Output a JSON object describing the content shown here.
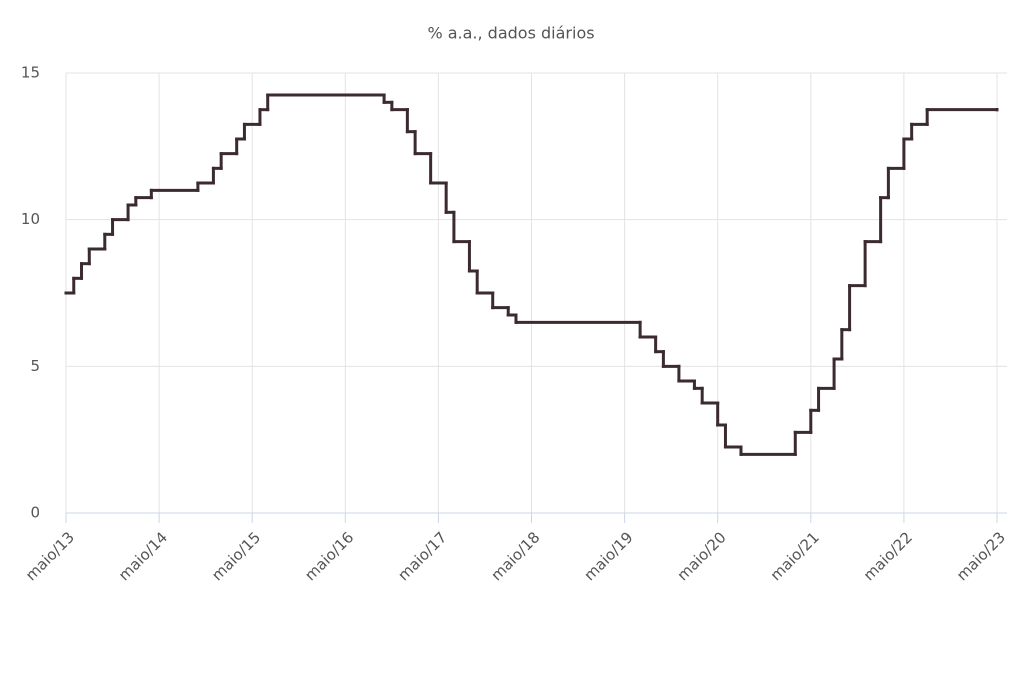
{
  "chart_data": {
    "type": "line",
    "step": "after",
    "title": "% a.a., dados diários",
    "x": [
      "2013-05",
      "2013-06",
      "2013-07",
      "2013-08",
      "2013-10",
      "2013-11",
      "2014-01",
      "2014-02",
      "2014-04",
      "2014-10",
      "2014-12",
      "2015-01",
      "2015-03",
      "2015-04",
      "2015-06",
      "2015-07",
      "2016-10",
      "2016-11",
      "2017-01",
      "2017-02",
      "2017-04",
      "2017-06",
      "2017-07",
      "2017-09",
      "2017-10",
      "2017-12",
      "2018-02",
      "2018-03",
      "2019-07",
      "2019-09",
      "2019-10",
      "2019-12",
      "2020-02",
      "2020-03",
      "2020-05",
      "2020-06",
      "2020-08",
      "2021-03",
      "2021-05",
      "2021-06",
      "2021-08",
      "2021-09",
      "2021-10",
      "2021-12",
      "2022-02",
      "2022-03",
      "2022-05",
      "2022-06",
      "2022-08",
      "2023-05"
    ],
    "values": [
      7.5,
      8.0,
      8.5,
      9.0,
      9.5,
      10.0,
      10.5,
      10.75,
      11.0,
      11.25,
      11.75,
      12.25,
      12.75,
      13.25,
      13.75,
      14.25,
      14.0,
      13.75,
      13.0,
      12.25,
      11.25,
      10.25,
      9.25,
      8.25,
      7.5,
      7.0,
      6.75,
      6.5,
      6.0,
      5.5,
      5.0,
      4.5,
      4.25,
      3.75,
      3.0,
      2.25,
      2.0,
      2.75,
      3.5,
      4.25,
      5.25,
      6.25,
      7.75,
      9.25,
      10.75,
      11.75,
      12.75,
      13.25,
      13.75,
      13.75
    ],
    "color": "#3b2a31",
    "xlim": [
      "2013-05",
      "2023-05"
    ],
    "xticks": [
      {
        "value": "2013-05",
        "label": "maio/13"
      },
      {
        "value": "2014-05",
        "label": "maio/14"
      },
      {
        "value": "2015-05",
        "label": "maio/15"
      },
      {
        "value": "2016-05",
        "label": "maio/16"
      },
      {
        "value": "2017-05",
        "label": "maio/17"
      },
      {
        "value": "2018-05",
        "label": "maio/18"
      },
      {
        "value": "2019-05",
        "label": "maio/19"
      },
      {
        "value": "2020-05",
        "label": "maio/20"
      },
      {
        "value": "2021-05",
        "label": "maio/21"
      },
      {
        "value": "2022-05",
        "label": "maio/22"
      },
      {
        "value": "2023-05",
        "label": "maio/23"
      }
    ],
    "ylim": [
      0,
      15
    ],
    "yticks": [
      0,
      5,
      10,
      15
    ],
    "grid": true
  }
}
